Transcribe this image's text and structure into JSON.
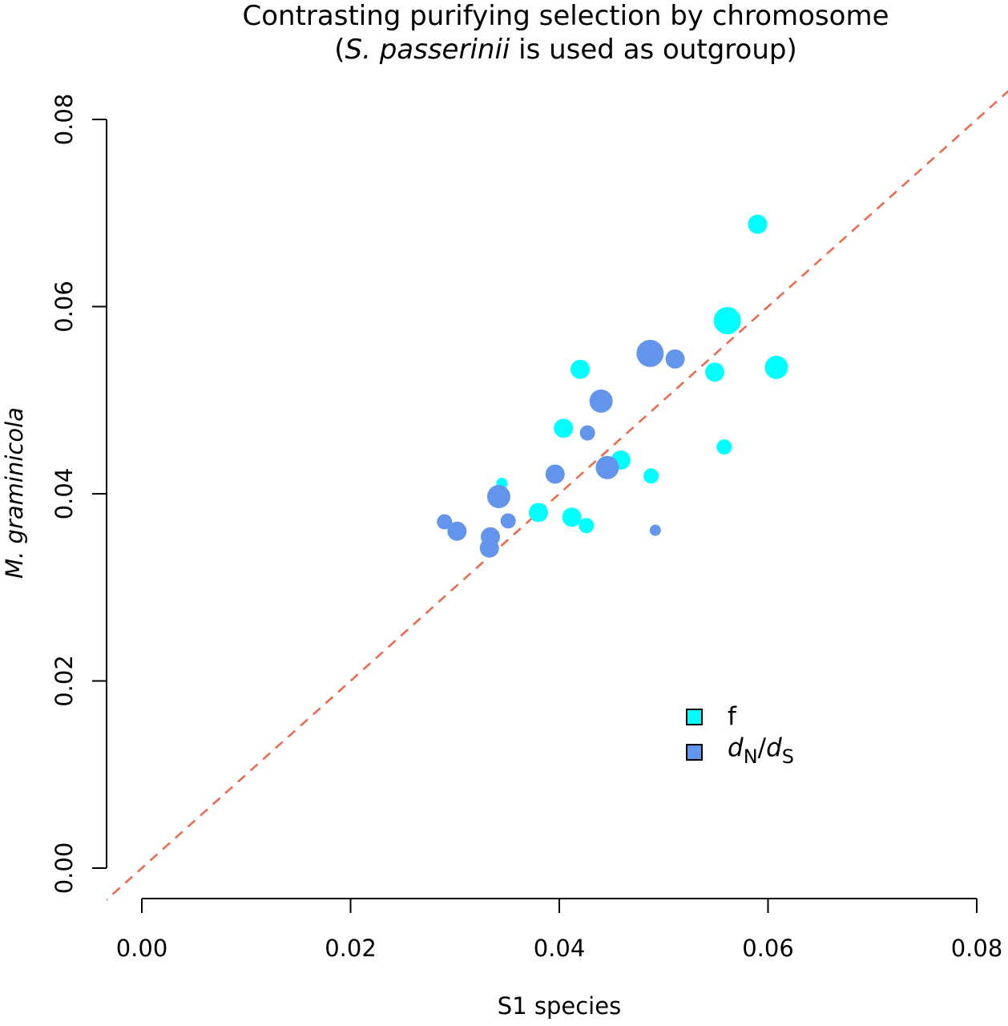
{
  "chart_data": {
    "type": "scatter",
    "title": "Contrasting purifying selection by chromosome",
    "subtitle": {
      "open": "(",
      "species": "S. passerinii",
      "rest": " is used as outgroup)"
    },
    "xlabel": "S1 species",
    "ylabel": "M. graminicola",
    "xlim": [
      0.0,
      0.08
    ],
    "ylim": [
      0.0,
      0.08
    ],
    "xticks": [
      "0.00",
      "0.02",
      "0.04",
      "0.06",
      "0.08"
    ],
    "yticks": [
      "0.00",
      "0.02",
      "0.04",
      "0.06",
      "0.08"
    ],
    "reference_line": {
      "type": "y=x",
      "style": "dashed",
      "color": "#EE6A50"
    },
    "legend": {
      "position": "lower-right",
      "entries": [
        {
          "key": "f",
          "label": "f",
          "color": "#00FFFF"
        },
        {
          "key": "dnds",
          "label_parts": {
            "d1": "d",
            "sub1": "N",
            "slash": "/",
            "d2": "d",
            "sub2": "S"
          },
          "color": "#6495ED"
        }
      ]
    },
    "series": [
      {
        "key": "f",
        "color": "#00FFFF",
        "points": [
          {
            "x": 0.059,
            "y": 0.0688,
            "size": 3
          },
          {
            "x": 0.0561,
            "y": 0.0585,
            "size": 5
          },
          {
            "x": 0.042,
            "y": 0.0533,
            "size": 3
          },
          {
            "x": 0.0549,
            "y": 0.053,
            "size": 3
          },
          {
            "x": 0.0608,
            "y": 0.0535,
            "size": 4
          },
          {
            "x": 0.0404,
            "y": 0.047,
            "size": 3
          },
          {
            "x": 0.0558,
            "y": 0.045,
            "size": 2
          },
          {
            "x": 0.0459,
            "y": 0.0436,
            "size": 3
          },
          {
            "x": 0.0488,
            "y": 0.0419,
            "size": 2
          },
          {
            "x": 0.0345,
            "y": 0.0411,
            "size": 1
          },
          {
            "x": 0.038,
            "y": 0.038,
            "size": 3
          },
          {
            "x": 0.0412,
            "y": 0.0375,
            "size": 3
          },
          {
            "x": 0.0426,
            "y": 0.0366,
            "size": 2
          }
        ]
      },
      {
        "key": "dnds",
        "color": "#6495ED",
        "points": [
          {
            "x": 0.0487,
            "y": 0.055,
            "size": 5
          },
          {
            "x": 0.0511,
            "y": 0.0544,
            "size": 3
          },
          {
            "x": 0.044,
            "y": 0.0499,
            "size": 4
          },
          {
            "x": 0.0427,
            "y": 0.0465,
            "size": 2
          },
          {
            "x": 0.0446,
            "y": 0.0428,
            "size": 4
          },
          {
            "x": 0.0396,
            "y": 0.0421,
            "size": 3
          },
          {
            "x": 0.0342,
            "y": 0.0397,
            "size": 4
          },
          {
            "x": 0.0351,
            "y": 0.0371,
            "size": 2
          },
          {
            "x": 0.029,
            "y": 0.037,
            "size": 2
          },
          {
            "x": 0.0302,
            "y": 0.036,
            "size": 3
          },
          {
            "x": 0.0334,
            "y": 0.0354,
            "size": 3
          },
          {
            "x": 0.0492,
            "y": 0.0361,
            "size": 1
          },
          {
            "x": 0.0333,
            "y": 0.0342,
            "size": 3
          }
        ]
      }
    ],
    "grid": false
  }
}
